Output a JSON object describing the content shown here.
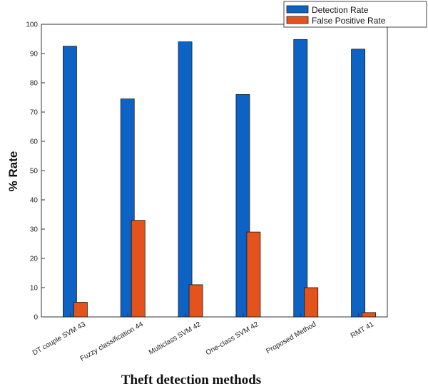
{
  "chart_data": {
    "type": "bar",
    "categories": [
      "DT couple SVM 43",
      "Fuzzy classification 44",
      "Multiclass SVM 42",
      "One-class SVM 42",
      "Proposed Method",
      "RMT 41"
    ],
    "series": [
      {
        "name": "Detection Rate",
        "values": [
          92.5,
          74.5,
          94,
          76,
          94.8,
          91.5
        ],
        "color": "#0d62c5"
      },
      {
        "name": "False Positive Rate",
        "values": [
          5,
          33,
          11,
          29,
          10,
          1.5
        ],
        "color": "#e4531b"
      }
    ],
    "xlabel": "Theft detection methods",
    "ylabel": "% Rate",
    "ylim": [
      0,
      100
    ],
    "yticks": [
      "0",
      "10",
      "20",
      "30",
      "40",
      "50",
      "60",
      "70",
      "80",
      "90",
      "100"
    ],
    "grid": false,
    "legend_position": "top-right"
  }
}
